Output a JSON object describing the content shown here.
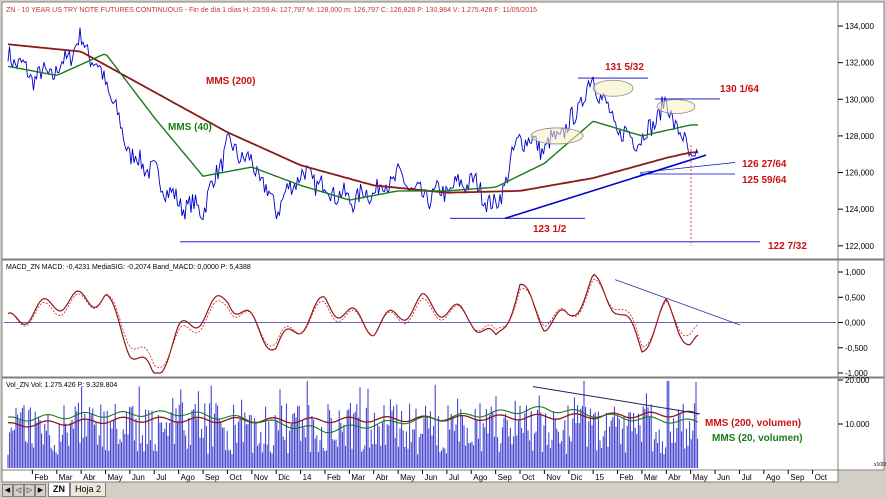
{
  "header": {
    "price_info": "ZN - 10 YEAR US TRY NOTE FUTURES CONTINUOUS - Fin de día 1 días  H: 23:59  A: 127,797  M: 128,000  m: 126,797  C: 126,828  P: 130,984  V: 1.275.426  F: 11/05/2015",
    "macd_info": "MACD_ZN  MACD: -0,4231  MediaSIG: -0,2074  Band_MACD: 0,0000  P: 5,4388",
    "vol_info": "Vol_ZN  Vol: 1.275.426  P: 9.328.804"
  },
  "price_axis": [
    "134,000",
    "132,000",
    "130,000",
    "128,000",
    "126,000",
    "124,000",
    "122,000"
  ],
  "macd_axis": [
    "1,000",
    "0,500",
    "0,000",
    "-0,500",
    "-1,000"
  ],
  "vol_axis": [
    "20.000",
    "10.000"
  ],
  "vol_axis_unit": "x1000",
  "x_axis": [
    "Feb",
    "Mar",
    "Abr",
    "May",
    "Jun",
    "Jul",
    "Ago",
    "Sep",
    "Oct",
    "Nov",
    "Dic",
    "14",
    "Feb",
    "Mar",
    "Abr",
    "May",
    "Jun",
    "Jul",
    "Ago",
    "Sep",
    "Oct",
    "Nov",
    "Dic",
    "15",
    "Feb",
    "Mar",
    "Abr",
    "May",
    "Jun",
    "Jul",
    "Ago",
    "Sep",
    "Oct"
  ],
  "annotations": {
    "mms200": "MMS (200)",
    "mms40": "MMS (40)",
    "high1": "131 5/32",
    "high2": "130 1/64",
    "support1": "126 27/64",
    "support2": "125 59/64",
    "low1": "123 1/2",
    "low2": "122 7/32",
    "vol_mms200": "MMS (200, volumen)",
    "vol_mms20": "MMS (20, volumen)"
  },
  "tabs": {
    "sheet_zn": "ZN",
    "sheet_hoja2": "Hoja 2"
  },
  "colors": {
    "price": "#0000cc",
    "mms200": "#8b1a1a",
    "mms40": "#1a7a1a",
    "trend": "#0000cc",
    "macd": "#8b1a1a",
    "signal": "#cc2222",
    "label": "#cc1111",
    "volume": "#3333cc"
  },
  "chart_data": [
    {
      "type": "line",
      "title": "",
      "xlabel": "",
      "ylabel": "",
      "ylim": [
        121.5,
        134.6
      ],
      "grid": false,
      "series": [
        {
          "name": "ZN",
          "x": [
            "2013-01",
            "2013-02",
            "2013-03",
            "2013-04",
            "2013-05",
            "2013-06",
            "2013-07",
            "2013-08",
            "2013-09",
            "2013-10",
            "2013-11",
            "2013-12",
            "2014-01",
            "2014-02",
            "2014-03",
            "2014-04",
            "2014-05",
            "2014-06",
            "2014-07",
            "2014-08",
            "2014-09",
            "2014-10",
            "2014-11",
            "2014-12",
            "2015-01",
            "2015-02",
            "2015-03",
            "2015-04",
            "2015-05"
          ],
          "values": [
            132.5,
            131.2,
            131.5,
            133.3,
            131.0,
            127.0,
            126.0,
            124.3,
            124.0,
            127.5,
            126.5,
            124.0,
            126.0,
            125.2,
            124.5,
            125.0,
            125.8,
            124.6,
            125.0,
            125.6,
            124.0,
            128.0,
            127.3,
            128.5,
            131.2,
            128.2,
            127.8,
            129.8,
            126.8
          ]
        },
        {
          "name": "MMS (200)",
          "x": [
            "2013-01",
            "2013-04",
            "2013-07",
            "2013-10",
            "2014-01",
            "2014-04",
            "2014-07",
            "2014-10",
            "2015-01",
            "2015-04",
            "2015-05"
          ],
          "values": [
            133.0,
            132.6,
            130.4,
            128.2,
            126.4,
            125.3,
            124.9,
            125.0,
            125.7,
            126.8,
            127.1
          ]
        },
        {
          "name": "MMS (40)",
          "x": [
            "2013-01",
            "2013-03",
            "2013-05",
            "2013-07",
            "2013-09",
            "2013-11",
            "2014-01",
            "2014-03",
            "2014-05",
            "2014-07",
            "2014-09",
            "2014-11",
            "2015-01",
            "2015-03",
            "2015-05"
          ],
          "values": [
            131.8,
            131.3,
            132.5,
            129.0,
            125.8,
            126.3,
            125.3,
            124.5,
            125.0,
            125.0,
            125.2,
            126.5,
            128.8,
            128.0,
            128.6
          ]
        }
      ],
      "annotations": [
        {
          "text": "131 5/32",
          "x": "2015-01",
          "y": 131.16
        },
        {
          "text": "130 1/64",
          "x": "2015-04",
          "y": 130.02
        },
        {
          "text": "126 27/64",
          "x": "2015-05",
          "y": 126.42
        },
        {
          "text": "125 59/64",
          "x": "2015-05",
          "y": 125.92
        },
        {
          "text": "123 1/2",
          "x": "2014-09",
          "y": 123.5
        },
        {
          "text": "122 7/32",
          "x": "2015-05",
          "y": 122.22
        }
      ]
    },
    {
      "type": "line",
      "title": "",
      "ylim": [
        -1.0,
        1.0
      ],
      "series": [
        {
          "name": "MACD",
          "x": [
            "2013-01",
            "2013-03",
            "2013-05",
            "2013-06",
            "2013-07",
            "2013-08",
            "2013-10",
            "2013-12",
            "2014-02",
            "2014-04",
            "2014-06",
            "2014-08",
            "2014-09",
            "2014-10",
            "2014-11",
            "2014-12",
            "2015-01",
            "2015-02",
            "2015-03",
            "2015-04",
            "2015-05"
          ],
          "values": [
            0.0,
            0.4,
            0.5,
            -0.5,
            -1.1,
            -0.2,
            0.5,
            -0.5,
            0.4,
            -0.1,
            0.4,
            0.1,
            -0.4,
            0.7,
            0.0,
            0.1,
            0.8,
            0.3,
            -0.5,
            0.3,
            -0.42
          ]
        },
        {
          "name": "MediaSIG",
          "x": [
            "2013-01",
            "2013-03",
            "2013-05",
            "2013-06",
            "2013-07",
            "2013-08",
            "2013-10",
            "2013-12",
            "2014-02",
            "2014-04",
            "2014-06",
            "2014-08",
            "2014-09",
            "2014-10",
            "2014-11",
            "2014-12",
            "2015-01",
            "2015-02",
            "2015-03",
            "2015-04",
            "2015-05"
          ],
          "values": [
            0.0,
            0.3,
            0.5,
            -0.3,
            -0.9,
            -0.3,
            0.4,
            -0.4,
            0.3,
            -0.1,
            0.3,
            0.1,
            -0.3,
            0.6,
            0.1,
            0.1,
            0.7,
            0.4,
            -0.4,
            0.25,
            -0.21
          ]
        }
      ]
    },
    {
      "type": "bar",
      "title": "",
      "ylim": [
        0,
        20000
      ],
      "series": [
        {
          "name": "MMS (200, volumen)",
          "x": [
            "2013-01",
            "2013-06",
            "2014-01",
            "2014-06",
            "2015-01",
            "2015-05"
          ],
          "values": [
            9700,
            11000,
            10800,
            11200,
            11800,
            12300
          ]
        },
        {
          "name": "MMS (20, volumen)",
          "x": [
            "2013-01",
            "2013-04",
            "2013-08",
            "2013-11",
            "2014-02",
            "2014-05",
            "2014-08",
            "2014-11",
            "2015-02",
            "2015-05"
          ],
          "values": [
            11000,
            12000,
            12500,
            11000,
            8500,
            10500,
            12000,
            13500,
            11500,
            10500
          ]
        }
      ]
    }
  ]
}
